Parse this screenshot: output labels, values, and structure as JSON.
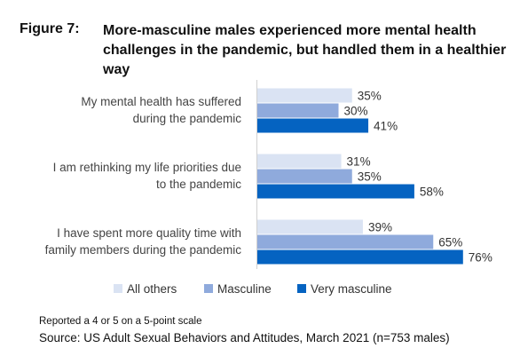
{
  "figure": {
    "label": "Figure 7:",
    "title": "More-masculine males experienced more mental health challenges in the pandemic, but handled them in a healthier way"
  },
  "chart_data": {
    "type": "bar",
    "orientation": "horizontal",
    "categories": [
      [
        "My mental health has suffered",
        "during the pandemic"
      ],
      [
        "I am rethinking my life priorities due",
        "to the pandemic"
      ],
      [
        "I have spent more quality time with",
        "family members during the pandemic"
      ]
    ],
    "series": [
      {
        "name": "All others",
        "color": "#dae3f3",
        "values": [
          35,
          31,
          39
        ]
      },
      {
        "name": "Masculine",
        "color": "#8faadc",
        "values": [
          30,
          35,
          65
        ]
      },
      {
        "name": "Very masculine",
        "color": "#0563c1",
        "values": [
          41,
          58,
          76
        ]
      }
    ],
    "value_suffix": "%",
    "xlim": [
      0,
      80
    ],
    "grid": false,
    "legend_position": "bottom"
  },
  "footer": {
    "note": "Reported a 4 or 5 on a 5-point scale",
    "source": "Source: US Adult Sexual Behaviors and Attitudes, March 2021 (n=753 males)"
  }
}
